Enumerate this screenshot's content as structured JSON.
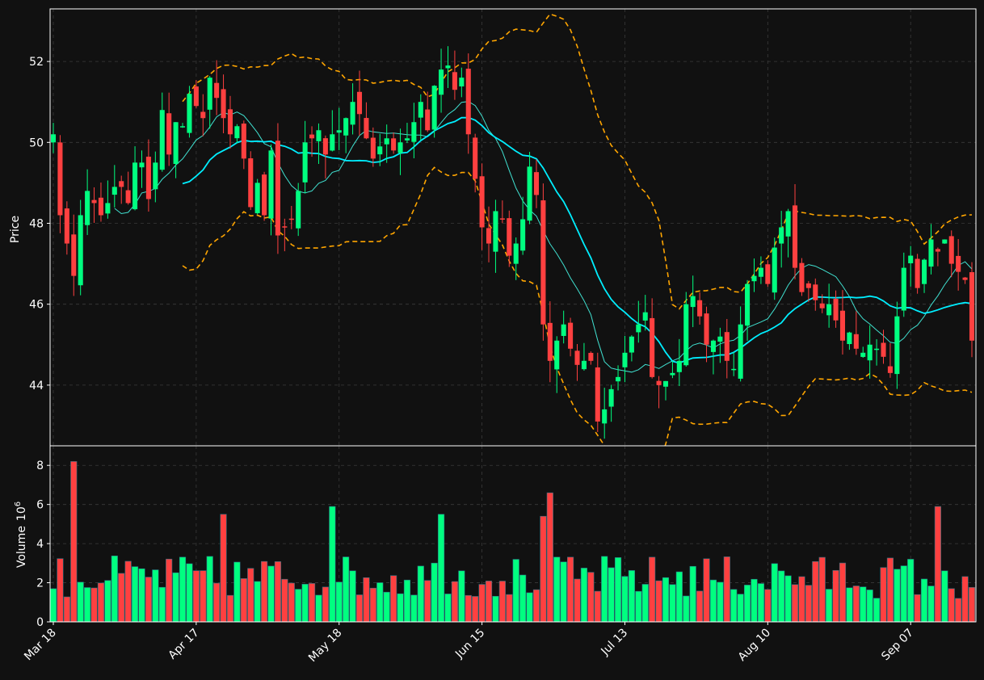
{
  "theme": {
    "background": "#111111",
    "grid": "#3a3a3a",
    "axis": "#ffffff",
    "text": "#ffffff",
    "up": "#00ff80",
    "down": "#ff4040",
    "ma_fast": "#40e0d0",
    "ma_slow": "#00eeff",
    "band": "#ffa500"
  },
  "chart_data": {
    "type": "candlestick",
    "price_panel": {
      "ylabel": "Price",
      "yticks": [
        44,
        46,
        48,
        50,
        52
      ],
      "ylim": [
        42.5,
        53.3
      ]
    },
    "volume_panel": {
      "ylabel": "Volume",
      "ylabel_exponent": "10",
      "ylabel_exponent_power": "6",
      "yticks": [
        0,
        2,
        4,
        6,
        8
      ],
      "ylim": [
        0,
        9
      ]
    },
    "x_ticks": [
      {
        "index": 0,
        "label": "Mar 18"
      },
      {
        "index": 21,
        "label": "Apr 17"
      },
      {
        "index": 42,
        "label": "May 18"
      },
      {
        "index": 63,
        "label": "Jun 15"
      },
      {
        "index": 84,
        "label": "Jul 13"
      },
      {
        "index": 105,
        "label": "Aug 10"
      },
      {
        "index": 126,
        "label": "Sep 07"
      }
    ],
    "num_bars": 136,
    "closes": [
      50.2,
      48.2,
      47.5,
      46.7,
      48.2,
      48.8,
      48.5,
      48.2,
      48.5,
      48.9,
      48.9,
      48.5,
      49.5,
      49.5,
      48.6,
      49.5,
      50.8,
      49.7,
      50.5,
      50.4,
      51.2,
      50.9,
      50.6,
      51.6,
      51.1,
      50.6,
      50.2,
      50.4,
      49.6,
      48.4,
      49.0,
      48.2,
      49.8,
      47.7,
      47.9,
      48.1,
      48.8,
      50.0,
      50.1,
      50.3,
      49.7,
      50.2,
      50.3,
      50.6,
      51.0,
      50.7,
      50.1,
      49.6,
      49.9,
      50.1,
      49.8,
      50.0,
      50.1,
      50.5,
      51.0,
      50.3,
      51.4,
      51.8,
      51.9,
      51.3,
      51.6,
      50.2,
      49.1,
      47.9,
      47.5,
      48.3,
      48.1,
      47.2,
      47.5,
      48.1,
      49.4,
      48.7,
      45.5,
      44.6,
      45.1,
      45.5,
      44.9,
      44.5,
      44.6,
      44.6,
      43.1,
      43.4,
      43.9,
      44.2,
      44.8,
      45.2,
      45.5,
      45.8,
      44.2,
      44.0,
      44.1,
      44.3,
      44.6,
      46.0,
      46.2,
      45.7,
      45.0,
      45.1,
      45.2,
      44.6,
      44.4,
      45.5,
      46.5,
      46.7,
      46.9,
      46.5,
      47.4,
      47.9,
      48.3,
      46.9,
      46.3,
      46.4,
      46.1,
      45.9,
      46.0,
      45.6,
      45.1,
      45.3,
      44.9,
      44.8,
      45.0,
      44.9,
      44.7,
      44.3,
      45.7,
      46.9,
      47.2,
      46.4,
      47.1,
      47.6,
      47.3,
      47.6,
      47.0,
      46.8,
      46.6,
      45.1
    ]
  }
}
